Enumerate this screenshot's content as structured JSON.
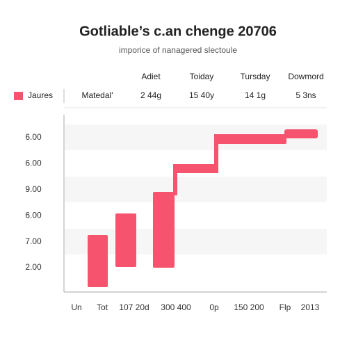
{
  "header": {
    "title": "Gotliable’s c.an chenge 20706",
    "subtitle": "imporice of nanagered slectoule"
  },
  "table": {
    "columns": [
      "Adiet",
      "Toiday",
      "Tursday",
      "Dowmord"
    ],
    "legend": "Jaures",
    "row": [
      "Matedal'",
      "2 44g",
      "15 40y",
      "14 1g",
      "5 3ns"
    ]
  },
  "axis": {
    "y_labels": [
      "6.00",
      "6.00",
      "9.00",
      "6.00",
      "7.00",
      "2.00"
    ],
    "x_labels": [
      "Un",
      "Tot",
      "107 20d",
      "300 400",
      "0p",
      "150 200",
      "Flp",
      "2013"
    ]
  }
}
